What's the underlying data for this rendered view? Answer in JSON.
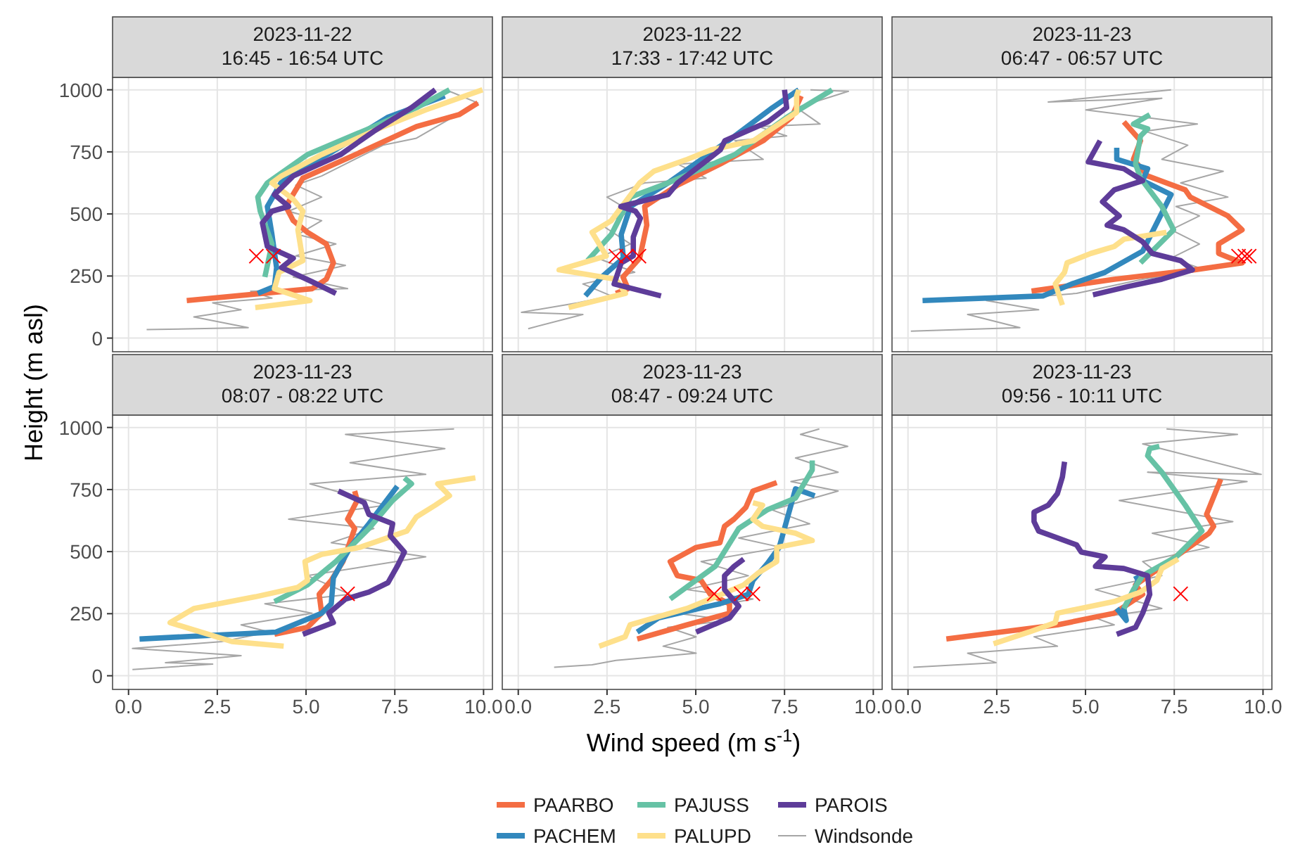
{
  "chart_data": [
    {
      "type": "line",
      "title": "2023-11-22",
      "subtitle": "16:45 - 16:54 UTC",
      "ylabel": "Height (m asl)",
      "legend": "bottom",
      "grid": true,
      "tick_labels": "y",
      "xlim": [
        -0.45,
        10.25
      ],
      "ylim": [
        -55,
        1050
      ],
      "xticks": [
        0,
        2.5,
        5,
        7.5,
        10
      ],
      "yticks": [
        0,
        250,
        500,
        750,
        1000
      ],
      "series": [
        {
          "name": "Windsonde",
          "color": "#a6a6a6",
          "x": [
            0.51,
            3.37,
            1.84,
            3.17,
            2.37,
            4.04,
            3.44,
            6.17,
            4.64,
            6.11,
            4.71,
            5.84,
            4.77,
            5.44,
            4.51,
            5.44,
            4.71,
            5.44,
            7.17,
            8.11,
            8.91,
            9.84,
            9.04
          ],
          "values": [
            34,
            42,
            85,
            114,
            142,
            161,
            189,
            199,
            246,
            293,
            331,
            379,
            417,
            473,
            511,
            568,
            616,
            653,
            777,
            805,
            871,
            947,
            994
          ]
        },
        {
          "name": "PAARBO",
          "color": "#f46d43",
          "x": [
            1.64,
            5.17,
            5.57,
            5.77,
            5.57,
            5.04,
            4.64,
            4.43,
            4.91,
            6.24,
            8.11,
            9.31,
            9.84
          ],
          "values": [
            151,
            199,
            237,
            303,
            379,
            426,
            473,
            530,
            644,
            729,
            852,
            900,
            947
          ]
        },
        {
          "name": "PACHEM",
          "color": "#3288bd",
          "x": [
            3.64,
            4.11,
            4.17,
            4.04,
            3.91,
            4.37,
            5.71,
            7.31,
            8.91
          ],
          "values": [
            180,
            208,
            284,
            417,
            530,
            644,
            748,
            890,
            975
          ]
        },
        {
          "name": "PAJUSS",
          "color": "#66c2a5",
          "x": [
            3.84,
            4.04,
            3.71,
            3.64,
            3.91,
            5.04,
            6.91,
            8.11,
            9.04
          ],
          "values": [
            246,
            379,
            511,
            568,
            625,
            739,
            852,
            928,
            1000
          ]
        },
        {
          "name": "PALUPD",
          "color": "#fee08b",
          "x": [
            3.57,
            5.11,
            4.11,
            4.24,
            4.91,
            4.77,
            4.91,
            4.64,
            4.04,
            4.31,
            5.44,
            7.04,
            8.37,
            9.97
          ],
          "values": [
            123,
            151,
            199,
            265,
            312,
            436,
            511,
            559,
            625,
            653,
            739,
            843,
            919,
            1000
          ]
        },
        {
          "name": "PAROIS",
          "color": "#5e3c99",
          "x": [
            5.84,
            5.17,
            4.31,
            4.64,
            3.91,
            3.77,
            4.04,
            4.51,
            4.11,
            4.64,
            5.97,
            6.91,
            7.97,
            8.64
          ],
          "values": [
            180,
            227,
            284,
            322,
            369,
            464,
            511,
            530,
            578,
            653,
            739,
            833,
            928,
            1000
          ]
        },
        {
          "type": "scatter",
          "marker": "cross",
          "color": "#ff0000",
          "x": [
            3.6,
            4.08
          ],
          "values": [
            330,
            330
          ]
        }
      ]
    },
    {
      "type": "line",
      "title": "2023-11-22",
      "subtitle": "17:33 - 17:42 UTC",
      "grid": true,
      "tick_labels": false,
      "xlim": [
        -0.45,
        10.25
      ],
      "ylim": [
        -55,
        1050
      ],
      "xticks": [
        0,
        2.5,
        5,
        7.5,
        10
      ],
      "yticks": [
        0,
        250,
        500,
        750,
        1000
      ],
      "series": [
        {
          "name": "Windsonde",
          "color": "#a6a6a6",
          "x": [
            0.28,
            1.82,
            0.09,
            1.67,
            2.62,
            1.82,
            3.28,
            2.23,
            3.16,
            2.35,
            3.16,
            2.5,
            3.56,
            5.29,
            4.49,
            6.9,
            6.1,
            7.56,
            6.76,
            8.5,
            7.84,
            9.3,
            8.23
          ],
          "values": [
            38,
            95,
            104,
            142,
            170,
            218,
            265,
            322,
            379,
            455,
            511,
            568,
            625,
            644,
            701,
            720,
            795,
            814,
            852,
            862,
            928,
            994,
            1000
          ]
        },
        {
          "name": "PAARBO",
          "color": "#f46d43",
          "x": [
            2.75,
            3.09,
            2.95,
            3.42,
            3.62,
            3.56,
            4.49,
            5.69,
            6.9,
            7.7,
            7.97
          ],
          "values": [
            180,
            199,
            246,
            322,
            455,
            530,
            616,
            701,
            795,
            890,
            975
          ]
        },
        {
          "name": "PACHEM",
          "color": "#3288bd",
          "x": [
            1.89,
            2.35,
            2.96,
            2.9,
            3.16,
            4.22,
            6.1,
            7.16,
            7.9
          ],
          "values": [
            170,
            246,
            322,
            417,
            530,
            625,
            814,
            928,
            1000
          ]
        },
        {
          "name": "PAJUSS",
          "color": "#66c2a5",
          "x": [
            1.95,
            2.62,
            3.16,
            4.22,
            6.1,
            7.57,
            8.84
          ],
          "values": [
            312,
            417,
            568,
            625,
            739,
            890,
            1000
          ]
        },
        {
          "name": "PALUPD",
          "color": "#fee08b",
          "x": [
            1.42,
            3.02,
            2.75,
            1.15,
            2.48,
            2.08,
            2.62,
            3.42,
            3.82,
            4.76,
            5.43,
            6.63,
            7.84,
            7.84,
            7.9
          ],
          "values": [
            123,
            180,
            237,
            275,
            331,
            426,
            473,
            625,
            672,
            720,
            758,
            795,
            909,
            975,
            1000
          ]
        },
        {
          "name": "PAROIS",
          "color": "#5e3c99",
          "x": [
            4.02,
            2.7,
            2.9,
            3.24,
            3.24,
            3.44,
            3.3,
            2.89,
            4.22,
            4.49,
            5.69,
            5.82,
            7.03,
            7.56,
            7.5
          ],
          "values": [
            170,
            218,
            303,
            331,
            407,
            483,
            511,
            530,
            578,
            625,
            758,
            795,
            871,
            928,
            1000
          ]
        },
        {
          "type": "scatter",
          "marker": "cross",
          "color": "#ff0000",
          "x": [
            2.75,
            3.05,
            3.4
          ],
          "values": [
            330,
            330,
            330
          ]
        }
      ]
    },
    {
      "type": "line",
      "title": "2023-11-23",
      "subtitle": "06:47 - 06:57 UTC",
      "grid": true,
      "tick_labels": false,
      "xlim": [
        -0.45,
        10.25
      ],
      "ylim": [
        -55,
        1050
      ],
      "xticks": [
        0,
        2.5,
        5,
        7.5,
        10
      ],
      "yticks": [
        0,
        250,
        500,
        750,
        1000
      ],
      "series": [
        {
          "name": "Windsonde",
          "color": "#a6a6a6",
          "x": [
            0.08,
            3.15,
            1.68,
            3.68,
            2.21,
            4.75,
            6.61,
            8.35,
            7.41,
            8.21,
            7.41,
            8.21,
            7.55,
            9.01,
            7.68,
            8.88,
            7.15,
            7.88,
            6.68,
            8.15,
            5.01,
            7.15,
            3.95,
            7.41
          ],
          "values": [
            28,
            42,
            95,
            114,
            151,
            180,
            237,
            275,
            322,
            379,
            436,
            492,
            530,
            568,
            625,
            672,
            720,
            777,
            833,
            862,
            919,
            966,
            951,
            1000
          ]
        },
        {
          "name": "PAARBO",
          "color": "#f46d43",
          "x": [
            3.48,
            5.81,
            8.08,
            9.41,
            8.75,
            8.75,
            9.41,
            9.01,
            7.95,
            7.81,
            6.75,
            6.35,
            6.55,
            6.08
          ],
          "values": [
            189,
            237,
            275,
            303,
            341,
            379,
            436,
            492,
            568,
            597,
            653,
            720,
            795,
            871
          ]
        },
        {
          "name": "PACHEM",
          "color": "#3288bd",
          "x": [
            0.41,
            3.81,
            4.61,
            5.55,
            6.61,
            7.41,
            6.61,
            6.75,
            5.88,
            5.88
          ],
          "values": [
            151,
            170,
            218,
            265,
            350,
            578,
            634,
            682,
            720,
            767
          ]
        },
        {
          "name": "PAJUSS",
          "color": "#66c2a5",
          "x": [
            6.55,
            7.48,
            7.15,
            6.55,
            6.41,
            6.55,
            6.75,
            6.35,
            6.81
          ],
          "values": [
            303,
            436,
            530,
            644,
            701,
            814,
            843,
            862,
            900
          ]
        },
        {
          "name": "PALUPD",
          "color": "#fee08b",
          "x": [
            4.35,
            4.15,
            4.41,
            4.48,
            5.15,
            5.81,
            6.08,
            7.28
          ],
          "values": [
            133,
            218,
            265,
            303,
            341,
            369,
            398,
            426
          ]
        },
        {
          "name": "PAROIS",
          "color": "#5e3c99",
          "x": [
            5.21,
            6.21,
            7.15,
            8.01,
            7.68,
            6.88,
            6.61,
            6.08,
            5.61,
            5.95,
            5.48,
            5.81,
            6.61,
            6.08,
            5.08,
            5.41
          ],
          "values": [
            174,
            208,
            237,
            275,
            312,
            341,
            388,
            436,
            455,
            492,
            549,
            597,
            634,
            682,
            710,
            795
          ]
        },
        {
          "type": "scatter",
          "marker": "cross",
          "color": "#ff0000",
          "x": [
            9.31,
            9.49,
            9.61
          ],
          "values": [
            330,
            330,
            330
          ]
        }
      ]
    },
    {
      "type": "line",
      "title": "2023-11-23",
      "subtitle": "08:07 - 08:22 UTC",
      "grid": true,
      "xlim": [
        -0.45,
        10.25
      ],
      "ylim": [
        -55,
        1050
      ],
      "xticks": [
        {
          "value": 0,
          "label": "0.0"
        },
        {
          "value": 2.5,
          "label": "2.5"
        },
        {
          "value": 5,
          "label": "5.0"
        },
        {
          "value": 7.5,
          "label": "7.5"
        },
        {
          "value": 10,
          "label": "10.0"
        }
      ],
      "yticks": [
        0,
        250,
        500,
        750,
        1000
      ],
      "series": [
        {
          "name": "Windsonde",
          "color": "#a6a6a6",
          "x": [
            0.11,
            2.37,
            1.04,
            3.17,
            0.11,
            2.64,
            3.97,
            3.17,
            5.17,
            3.84,
            6.24,
            5.04,
            8.37,
            5.71,
            6.91,
            4.51,
            7.24,
            5.11,
            8.37,
            6.24,
            8.91,
            6.11,
            9.17
          ],
          "values": [
            25,
            47,
            53,
            81,
            110,
            138,
            176,
            205,
            252,
            290,
            328,
            403,
            479,
            536,
            593,
            631,
            687,
            773,
            811,
            858,
            915,
            972,
            994
          ]
        },
        {
          "name": "PAARBO",
          "color": "#f46d43",
          "x": [
            4.11,
            5.04,
            5.44,
            5.37,
            5.71,
            6.04,
            6.37,
            6.17,
            6.44,
            6.37
          ],
          "values": [
            167,
            195,
            252,
            328,
            384,
            460,
            593,
            631,
            706,
            744
          ]
        },
        {
          "name": "PACHEM",
          "color": "#3288bd",
          "x": [
            0.31,
            4.15,
            5.44,
            5.71,
            5.77,
            6.24,
            6.77,
            7.57
          ],
          "values": [
            148,
            176,
            252,
            290,
            394,
            517,
            612,
            763
          ]
        },
        {
          "name": "PAJUSS",
          "color": "#66c2a5",
          "x": [
            4.11,
            5.04,
            5.84,
            6.77,
            7.44,
            7.97,
            7.77
          ],
          "values": [
            299,
            366,
            460,
            593,
            706,
            773,
            797
          ]
        },
        {
          "name": "PALUPD",
          "color": "#fee08b",
          "x": [
            4.37,
            2.91,
            1.17,
            1.84,
            3.57,
            4.77,
            5.04,
            4.97,
            5.44,
            6.51,
            7.84,
            8.11,
            8.64,
            9.04,
            8.71,
            9.77
          ],
          "values": [
            119,
            138,
            214,
            271,
            318,
            356,
            384,
            460,
            489,
            517,
            583,
            640,
            687,
            725,
            773,
            797
          ]
        },
        {
          "name": "PAROIS",
          "color": "#5e3c99",
          "x": [
            4.91,
            5.77,
            5.64,
            6.11,
            6.77,
            7.31,
            7.57,
            7.77,
            7.37,
            7.44,
            6.77,
            6.64,
            5.91
          ],
          "values": [
            167,
            214,
            252,
            309,
            337,
            375,
            441,
            498,
            564,
            612,
            650,
            697,
            744
          ]
        },
        {
          "type": "scatter",
          "marker": "cross",
          "color": "#ff0000",
          "x": [
            6.17
          ],
          "values": [
            330
          ]
        }
      ]
    },
    {
      "type": "line",
      "title": "2023-11-23",
      "subtitle": "08:47 - 09:24 UTC",
      "xlabel": "Wind speed (m s$^{-1}$)",
      "grid": true,
      "tick_labels": "x",
      "xlim": [
        -0.45,
        10.25
      ],
      "ylim": [
        -55,
        1050
      ],
      "xticks": [
        {
          "value": 0,
          "label": "0.0"
        },
        {
          "value": 2.5,
          "label": "2.5"
        },
        {
          "value": 5,
          "label": "5.0"
        },
        {
          "value": 7.5,
          "label": "7.5"
        },
        {
          "value": 10,
          "label": "10.0"
        }
      ],
      "yticks": [
        0,
        250,
        500,
        750,
        1000
      ],
      "series": [
        {
          "name": "Windsonde",
          "color": "#a6a6a6",
          "x": [
            1.01,
            2.08,
            2.75,
            5.01,
            4.08,
            5.01,
            4.21,
            5.95,
            4.48,
            6.61,
            4.75,
            6.48,
            5.15,
            7.41,
            6.21,
            8.21,
            7.15,
            9.01,
            7.68,
            9.01,
            7.81,
            9.28,
            7.95,
            8.48
          ],
          "values": [
            34,
            44,
            62,
            91,
            119,
            157,
            195,
            223,
            252,
            309,
            347,
            403,
            460,
            517,
            555,
            612,
            668,
            744,
            782,
            820,
            877,
            924,
            972,
            994
          ]
        },
        {
          "name": "PAARBO",
          "color": "#f46d43",
          "x": [
            3.35,
            4.75,
            5.95,
            5.95,
            5.41,
            5.15,
            4.48,
            4.28,
            5.01,
            5.68,
            5.81,
            6.08,
            6.41,
            6.61,
            7.28
          ],
          "values": [
            148,
            205,
            252,
            290,
            328,
            384,
            403,
            460,
            517,
            536,
            602,
            631,
            678,
            744,
            778
          ]
        },
        {
          "name": "PACHEM",
          "color": "#3288bd",
          "x": [
            3.35,
            3.95,
            5.68,
            6.48,
            6.61,
            7.01,
            7.35,
            7.81,
            8.35
          ],
          "values": [
            176,
            233,
            290,
            328,
            384,
            451,
            517,
            753,
            725
          ]
        },
        {
          "name": "PAJUSS",
          "color": "#66c2a5",
          "x": [
            4.28,
            5.55,
            6.21,
            7.01,
            7.81,
            8.28,
            8.28
          ],
          "values": [
            309,
            441,
            593,
            668,
            716,
            829,
            867
          ]
        },
        {
          "name": "PALUPD",
          "color": "#fee08b",
          "x": [
            2.28,
            3.01,
            3.15,
            4.75,
            5.41,
            6.35,
            6.75,
            7.28,
            7.28,
            8.28,
            7.81,
            6.88,
            6.61,
            6.88,
            6.61
          ],
          "values": [
            119,
            157,
            205,
            271,
            309,
            366,
            413,
            460,
            517,
            545,
            574,
            602,
            631,
            687,
            697
          ]
        },
        {
          "name": "PAROIS",
          "color": "#5e3c99",
          "x": [
            5.01,
            5.95,
            6.21,
            5.81,
            5.81,
            6.08,
            6.35
          ],
          "values": [
            176,
            233,
            280,
            347,
            403,
            441,
            470
          ]
        },
        {
          "type": "scatter",
          "marker": "cross",
          "color": "#ff0000",
          "x": [
            5.52,
            6.28,
            6.61
          ],
          "values": [
            330,
            330,
            330
          ]
        }
      ]
    },
    {
      "type": "line",
      "title": "2023-11-23",
      "subtitle": "09:56 - 10:11 UTC",
      "grid": true,
      "tick_labels": "x",
      "xlim": [
        -0.45,
        10.25
      ],
      "ylim": [
        -55,
        1050
      ],
      "xticks": [
        {
          "value": 0,
          "label": "0.0"
        },
        {
          "value": 2.5,
          "label": "2.5"
        },
        {
          "value": 5,
          "label": "5.0"
        },
        {
          "value": 7.5,
          "label": "7.5"
        },
        {
          "value": 10,
          "label": "10.0"
        }
      ],
      "yticks": [
        0,
        250,
        500,
        750,
        1000
      ],
      "series": [
        {
          "name": "Windsonde",
          "color": "#a6a6a6",
          "x": [
            0.15,
            2.48,
            1.68,
            4.21,
            3.55,
            5.81,
            5.28,
            7.15,
            5.28,
            7.15,
            6.61,
            8.48,
            6.88,
            9.15,
            5.95,
            9.55,
            6.75,
            9.95,
            6.61,
            9.28,
            7.28
          ],
          "values": [
            34,
            53,
            91,
            119,
            157,
            205,
            233,
            271,
            347,
            403,
            460,
            517,
            574,
            621,
            706,
            782,
            820,
            811,
            934,
            972,
            994
          ]
        },
        {
          "name": "PAARBO",
          "color": "#f46d43",
          "x": [
            1.08,
            4.21,
            5.81,
            6.61,
            6.41,
            8.48,
            8.61,
            8.41,
            8.81
          ],
          "values": [
            148,
            205,
            252,
            328,
            366,
            574,
            602,
            650,
            792
          ]
        },
        {
          "name": "PACHEM",
          "color": "#3288bd",
          "x": [
            5.88,
            6.15,
            6.08,
            6.35,
            6.48,
            6.41
          ],
          "values": [
            271,
            223,
            271,
            337,
            384,
            403
          ]
        },
        {
          "name": "PAJUSS",
          "color": "#66c2a5",
          "x": [
            6.08,
            6.35,
            6.61,
            7.55,
            8.28,
            7.81,
            7.15,
            6.75,
            6.81,
            7.08
          ],
          "values": [
            271,
            347,
            403,
            479,
            583,
            687,
            820,
            886,
            915,
            924
          ]
        },
        {
          "name": "PALUPD",
          "color": "#fee08b",
          "x": [
            2.41,
            3.41,
            4.15,
            4.21,
            5.81,
            6.55,
            7.01,
            7.15,
            7.61
          ],
          "values": [
            129,
            176,
            214,
            252,
            299,
            337,
            384,
            432,
            470
          ]
        },
        {
          "name": "PAROIS",
          "color": "#5e3c99",
          "x": [
            5.88,
            6.41,
            6.61,
            6.81,
            6.75,
            6.08,
            5.28,
            5.55,
            4.88,
            4.75,
            3.68,
            3.55,
            3.55,
            3.95,
            4.21,
            4.35,
            4.41
          ],
          "values": [
            167,
            195,
            252,
            328,
            403,
            432,
            441,
            479,
            498,
            527,
            583,
            621,
            659,
            687,
            734,
            801,
            862
          ]
        },
        {
          "type": "scatter",
          "marker": "cross",
          "color": "#ff0000",
          "x": [
            7.68
          ],
          "values": [
            330
          ]
        }
      ]
    }
  ]
}
